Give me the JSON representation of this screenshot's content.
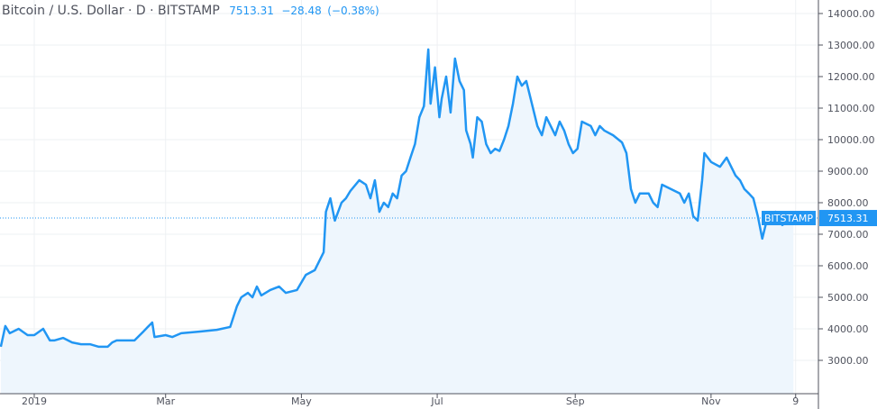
{
  "header": {
    "symbol": "Bitcoin / U.S. Dollar · D · BITSTAMP",
    "last": "7513.31",
    "change": "−28.48",
    "change_pct": "(−0.38%)"
  },
  "colors": {
    "line": "#2196f3",
    "fill": "#eef6fd",
    "grid": "#eef0f3",
    "label_bg": "#2196f3"
  },
  "chart_data": {
    "type": "area",
    "title": "Bitcoin / U.S. Dollar · D · BITSTAMP",
    "x_unit": "days since 2019-01-01",
    "x_ticks": [
      {
        "label": "2019",
        "day": 0
      },
      {
        "label": "Mar",
        "day": 59
      },
      {
        "label": "May",
        "day": 120
      },
      {
        "label": "Jul",
        "day": 181
      },
      {
        "label": "Sep",
        "day": 243
      },
      {
        "label": "Nov",
        "day": 304
      },
      {
        "label": "9",
        "day": 342
      }
    ],
    "y_ticks": [
      "3000.00",
      "4000.00",
      "5000.00",
      "6000.00",
      "7000.00",
      "8000.00",
      "9000.00",
      "10000.00",
      "11000.00",
      "12000.00",
      "13000.00",
      "14000.00"
    ],
    "ylim": [
      2000,
      14500
    ],
    "xlim": [
      -15,
      353
    ],
    "last_price": 7513.31,
    "last_label": "BITSTAMP",
    "last_value_label": "7513.31",
    "x": [
      -15,
      -13,
      -11,
      -7,
      -3,
      0,
      4,
      7,
      9,
      13,
      17,
      21,
      25,
      29,
      33,
      35,
      37,
      45,
      49,
      51,
      53,
      54,
      59,
      62,
      66,
      74,
      82,
      88,
      91,
      93,
      96,
      98,
      100,
      102,
      106,
      110,
      113,
      118,
      122,
      126,
      130,
      131,
      133,
      135,
      138,
      140,
      142,
      146,
      149,
      151,
      153,
      155,
      157,
      159,
      161,
      163,
      165,
      167,
      169,
      171,
      173,
      175,
      177,
      178,
      180,
      182,
      183,
      185,
      187,
      189,
      191,
      193,
      194,
      196,
      197,
      199,
      201,
      203,
      205,
      207,
      209,
      211,
      213,
      215,
      217,
      219,
      221,
      223,
      226,
      228,
      230,
      232,
      234,
      236,
      238,
      240,
      242,
      244,
      246,
      250,
      252,
      254,
      256,
      260,
      264,
      266,
      268,
      270,
      272,
      276,
      278,
      280,
      282,
      286,
      290,
      292,
      294,
      296,
      298,
      300,
      301,
      304,
      308,
      311,
      315,
      317,
      319,
      321,
      323,
      325,
      327,
      329,
      331,
      333,
      335,
      336,
      339,
      341
    ],
    "y": [
      3430,
      4090,
      3860,
      4000,
      3800,
      3800,
      4000,
      3630,
      3630,
      3710,
      3570,
      3510,
      3510,
      3430,
      3430,
      3570,
      3630,
      3630,
      3910,
      4060,
      4200,
      3740,
      3800,
      3740,
      3860,
      3910,
      3970,
      4060,
      4710,
      5000,
      5140,
      5000,
      5340,
      5060,
      5230,
      5340,
      5140,
      5230,
      5710,
      5860,
      6430,
      7710,
      8140,
      7430,
      8000,
      8140,
      8370,
      8710,
      8570,
      8140,
      8710,
      7710,
      8000,
      7860,
      8290,
      8140,
      8860,
      9000,
      9430,
      9860,
      10710,
      11060,
      12860,
      11140,
      12290,
      10710,
      11290,
      12000,
      10860,
      12570,
      11860,
      11570,
      10290,
      9860,
      9430,
      10710,
      10570,
      9860,
      9570,
      9710,
      9640,
      10000,
      10430,
      11140,
      12000,
      11710,
      11860,
      11290,
      10430,
      10140,
      10710,
      10430,
      10140,
      10570,
      10290,
      9860,
      9570,
      9710,
      10570,
      10430,
      10140,
      10430,
      10290,
      10140,
      9910,
      9570,
      8430,
      8000,
      8290,
      8290,
      8000,
      7860,
      8570,
      8430,
      8290,
      8000,
      8290,
      7570,
      7430,
      8710,
      9570,
      9290,
      9140,
      9430,
      8860,
      8710,
      8430,
      8290,
      8140,
      7570,
      6860,
      7430,
      7430,
      7710,
      7570,
      7290,
      7430,
      7570
    ]
  }
}
